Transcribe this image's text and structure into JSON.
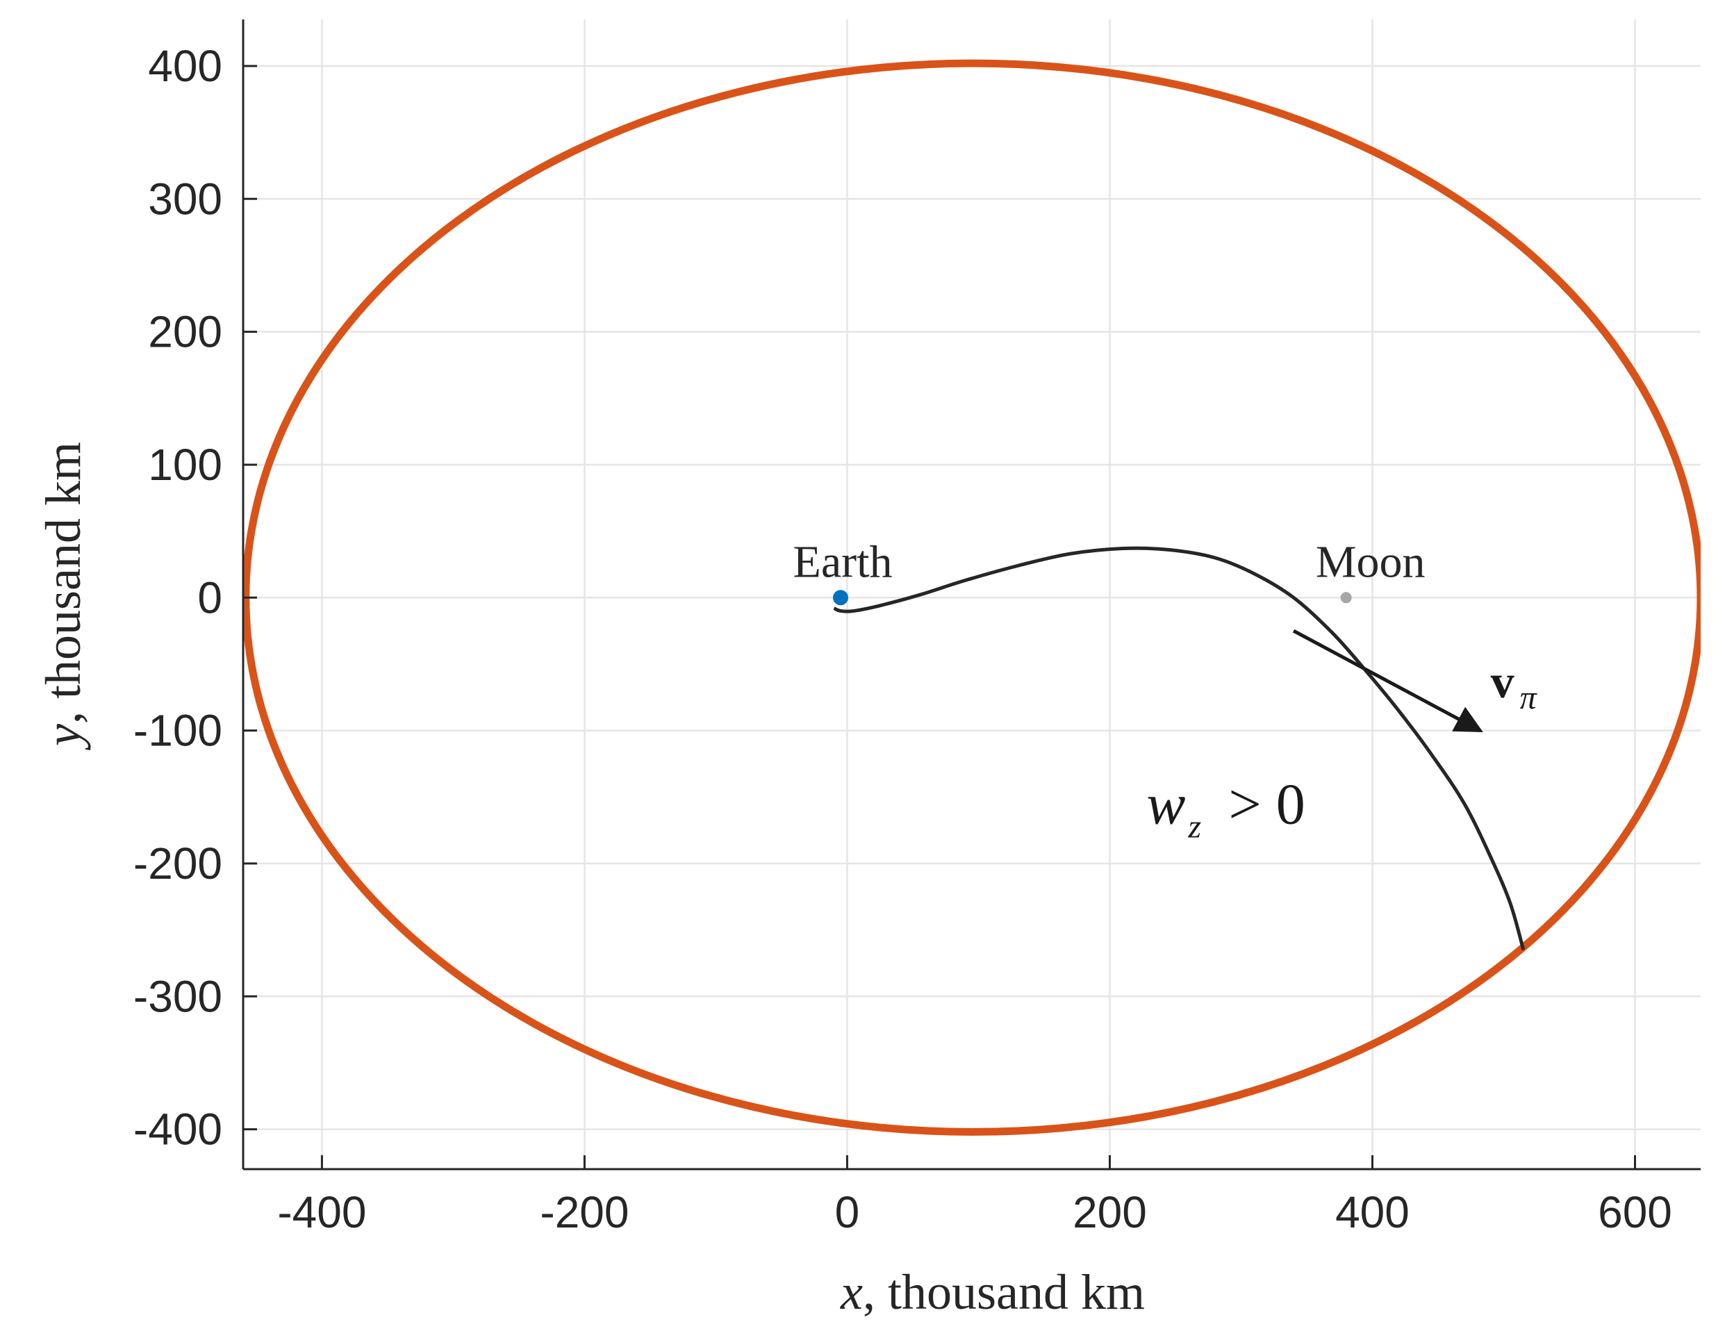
{
  "chart_data": {
    "type": "line",
    "xlabel": {
      "var": "x",
      "rest": ", thousand km"
    },
    "ylabel": {
      "var": "y",
      "rest": ", thousand km"
    },
    "xlim": [
      -460,
      650
    ],
    "ylim": [
      -430,
      435
    ],
    "xticks": [
      -400,
      -200,
      0,
      200,
      400,
      600
    ],
    "yticks": [
      -400,
      -300,
      -200,
      -100,
      0,
      100,
      200,
      300,
      400
    ],
    "xtick_labels": [
      "-400",
      "-200",
      "0",
      "200",
      "400",
      "600"
    ],
    "ytick_labels": [
      "-400",
      "-300",
      "-200",
      "-100",
      "0",
      "100",
      "200",
      "300",
      "400"
    ],
    "grid": true,
    "colors": {
      "ellipse": "#D95319",
      "trajectory": "#262626",
      "earth": "#0072BD",
      "moon": "#A6A6A6",
      "grid": "#E5E5E5",
      "axis": "#262626"
    },
    "series": [
      {
        "kind": "ellipse",
        "center": [
          96,
          0
        ],
        "semi_axes": [
          554,
          402
        ]
      },
      {
        "kind": "trajectory",
        "x": [
          -10,
          -5,
          5,
          25,
          55,
          90,
          130,
          170,
          210,
          245,
          280,
          310,
          340,
          370,
          395,
          420,
          445,
          470,
          490,
          505,
          515
        ],
        "y": [
          -8,
          -10,
          -10,
          -6,
          2,
          13,
          24,
          33,
          37,
          36,
          30,
          18,
          0,
          -27,
          -55,
          -85,
          -118,
          -155,
          -195,
          -230,
          -265
        ]
      }
    ],
    "points": [
      {
        "name": "Earth",
        "x": -5,
        "y": 0
      },
      {
        "name": "Moon",
        "x": 380,
        "y": 0
      }
    ],
    "arrow": {
      "from": [
        340,
        -25
      ],
      "to": [
        482,
        -100
      ]
    },
    "annotations": {
      "vector": {
        "base": "v",
        "sub": "π"
      },
      "condition": {
        "lhs": "w",
        "sub": "z",
        "rhs": "> 0"
      }
    }
  }
}
